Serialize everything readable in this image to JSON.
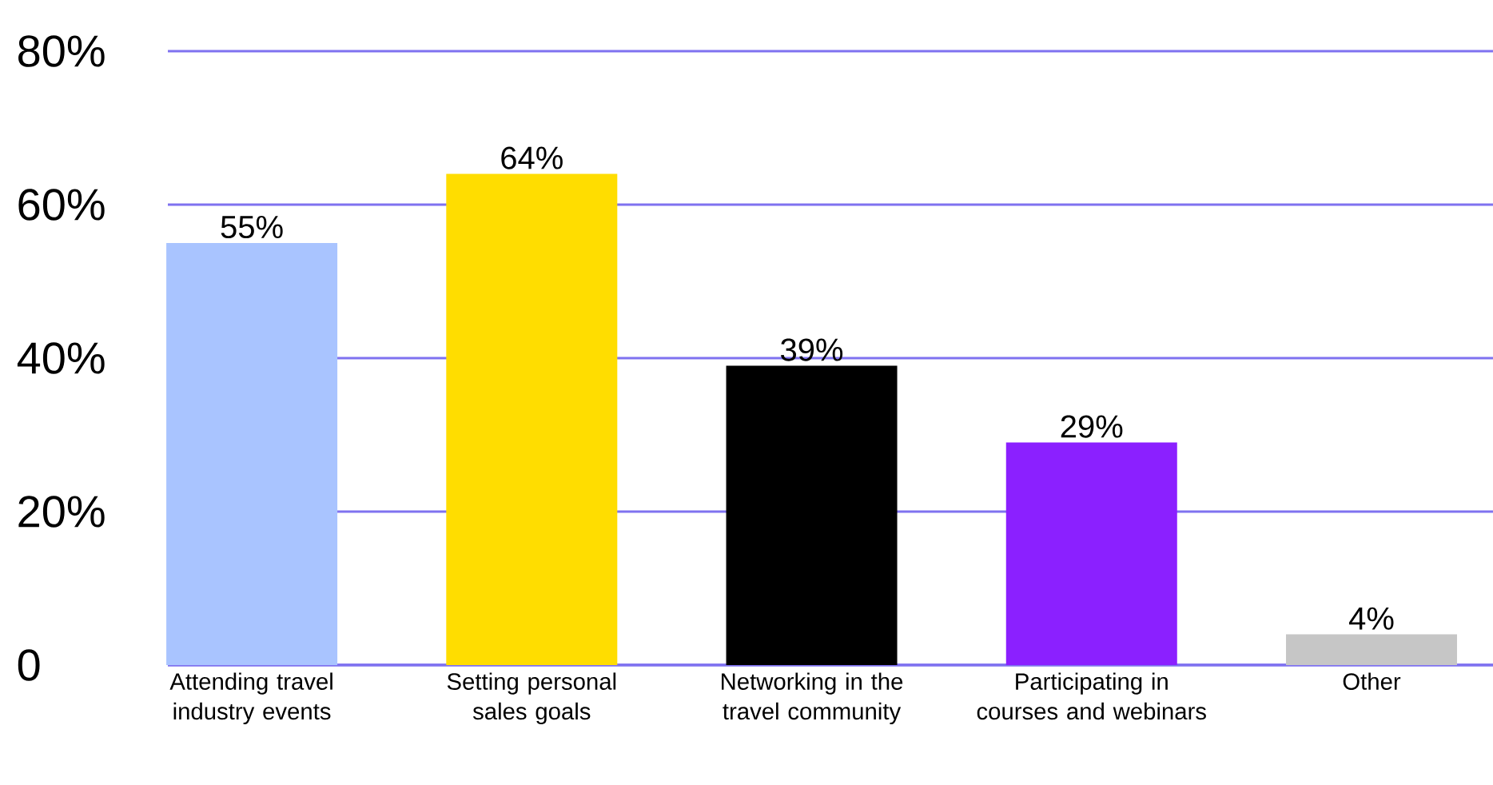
{
  "chart_data": {
    "type": "bar",
    "categories": [
      "Attending travel industry events",
      "Setting personal sales goals",
      "Networking in the travel community",
      "Participating in courses and webinars",
      "Other"
    ],
    "values": [
      55,
      64,
      39,
      29,
      4
    ],
    "value_labels": [
      "55%",
      "64%",
      "39%",
      "29%",
      "4%"
    ],
    "colors": [
      "#a9c4ff",
      "#ffdd00",
      "#000000",
      "#8b20ff",
      "#c6c6c6"
    ],
    "ylim": [
      0,
      80
    ],
    "yticks": [
      0,
      {
        "value": 20,
        "label": "20%"
      },
      {
        "value": 40,
        "label": "40%"
      },
      {
        "value": 60,
        "label": "60%"
      },
      {
        "value": 80,
        "label": "80%"
      }
    ],
    "grid": "y"
  }
}
